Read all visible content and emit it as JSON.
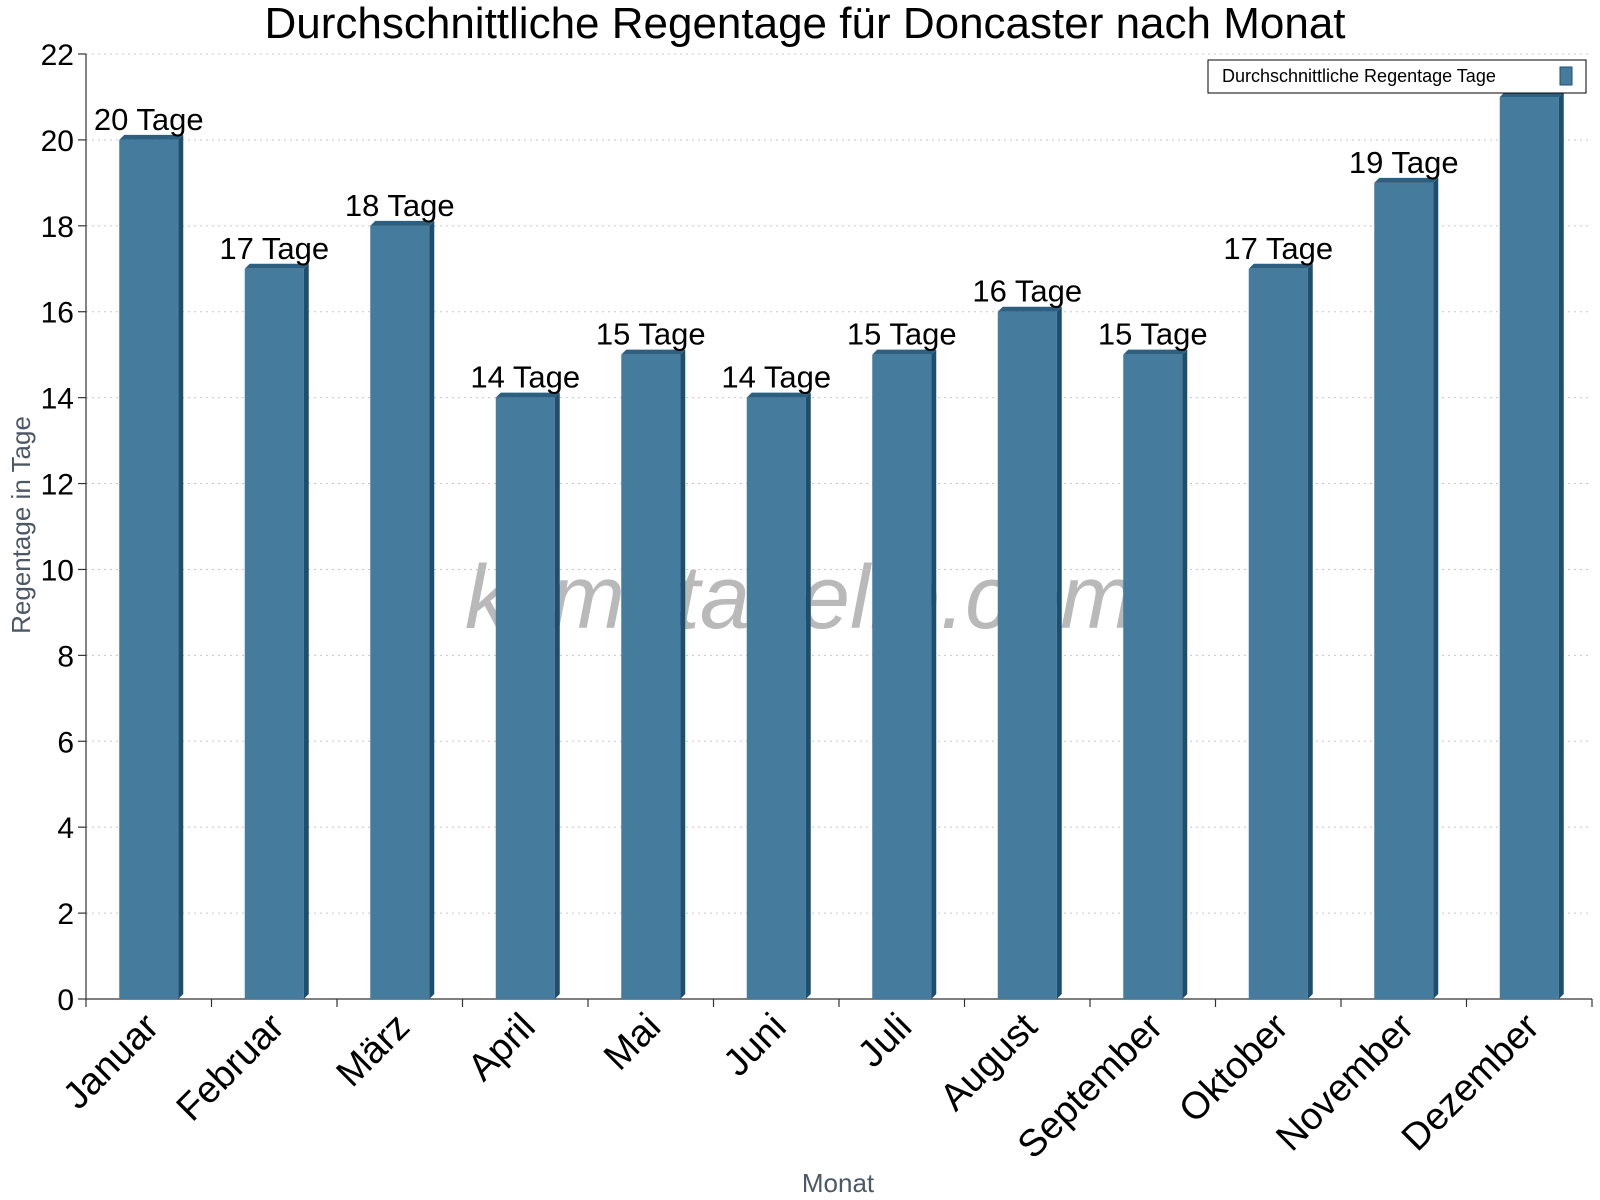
{
  "chart_data": {
    "type": "bar",
    "title": "Durchschnittliche Regentage für Doncaster nach Monat",
    "xlabel": "Monat",
    "ylabel": "Regentage in Tage",
    "ylim": [
      0,
      22
    ],
    "yticks": [
      0,
      2,
      4,
      6,
      8,
      10,
      12,
      14,
      16,
      18,
      20,
      22
    ],
    "grid": true,
    "legend_position": "top-right",
    "categories": [
      "Januar",
      "Februar",
      "März",
      "April",
      "Mai",
      "Juni",
      "Juli",
      "August",
      "September",
      "Oktober",
      "November",
      "Dezember"
    ],
    "series": [
      {
        "name": "Durchschnittliche Regentage Tage",
        "values": [
          20,
          17,
          18,
          14,
          15,
          14,
          15,
          16,
          15,
          17,
          19,
          21
        ],
        "labels": [
          "20 Tage",
          "17 Tage",
          "18 Tage",
          "14 Tage",
          "15 Tage",
          "14 Tage",
          "15 Tage",
          "16 Tage",
          "15 Tage",
          "17 Tage",
          "19 Tage",
          ""
        ],
        "color": "#457b9d",
        "side_color": "#1d4e6e",
        "top_color": "#2c5f80"
      }
    ],
    "watermark": "klimatabelle.com"
  }
}
